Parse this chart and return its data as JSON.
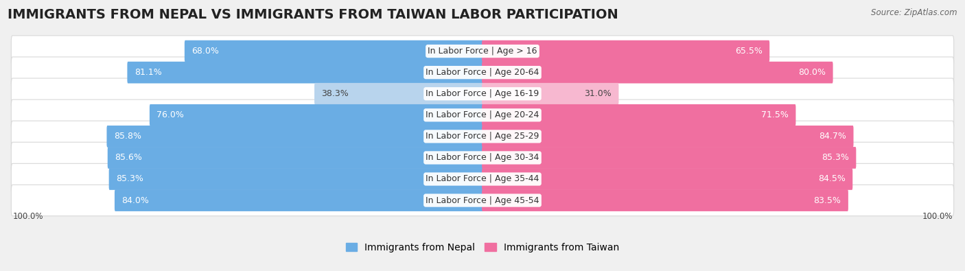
{
  "title": "IMMIGRANTS FROM NEPAL VS IMMIGRANTS FROM TAIWAN LABOR PARTICIPATION",
  "source": "Source: ZipAtlas.com",
  "categories": [
    "In Labor Force | Age > 16",
    "In Labor Force | Age 20-64",
    "In Labor Force | Age 16-19",
    "In Labor Force | Age 20-24",
    "In Labor Force | Age 25-29",
    "In Labor Force | Age 30-34",
    "In Labor Force | Age 35-44",
    "In Labor Force | Age 45-54"
  ],
  "nepal_values": [
    68.0,
    81.1,
    38.3,
    76.0,
    85.8,
    85.6,
    85.3,
    84.0
  ],
  "taiwan_values": [
    65.5,
    80.0,
    31.0,
    71.5,
    84.7,
    85.3,
    84.5,
    83.5
  ],
  "nepal_color": "#6aade4",
  "nepal_color_light": "#b8d4ed",
  "taiwan_color": "#f06fa0",
  "taiwan_color_light": "#f7b8d0",
  "background_color": "#f0f0f0",
  "row_bg_color": "#ffffff",
  "row_border_color": "#d8d8d8",
  "max_value": 100.0,
  "title_fontsize": 14,
  "label_fontsize": 9,
  "value_fontsize": 9,
  "legend_fontsize": 10,
  "bottom_label": "100.0%"
}
